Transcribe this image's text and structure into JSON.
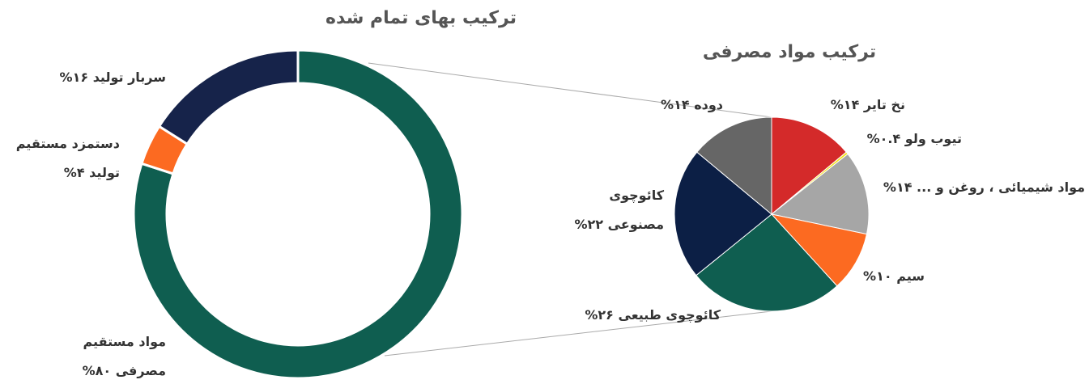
{
  "chart_data": [
    {
      "type": "donut",
      "title": "ترکیب بهای تمام شده",
      "categories": [
        "مواد مستقیم مصرفی",
        "دستمزد مستقیم تولید",
        "سربار تولید"
      ],
      "values": [
        80,
        4,
        16
      ],
      "value_labels": [
        "۸۰%",
        "۴%",
        "۱۶%"
      ],
      "colors": [
        "#0f5e50",
        "#fc6a21",
        "#16234a"
      ]
    },
    {
      "type": "pie",
      "title": "ترکیب مواد مصرفی",
      "categories": [
        "نخ تایر",
        "تیوب ولو",
        "مواد شیمیائی ، روغن و ...",
        "سیم",
        "کائوچوی طبیعی",
        "کائوچوی مصنوعی",
        "دوده"
      ],
      "values": [
        14,
        0.4,
        14,
        10,
        26,
        22,
        14
      ],
      "value_labels": [
        "۱۴%",
        "۰.۴%",
        "۱۴%",
        "۱۰%",
        "۲۶%",
        "۲۲%",
        "۱۴%"
      ],
      "colors": [
        "#d42a2a",
        "#f2e11a",
        "#a6a6a6",
        "#fc6a21",
        "#0f5e50",
        "#0c1f45",
        "#666666"
      ]
    }
  ]
}
